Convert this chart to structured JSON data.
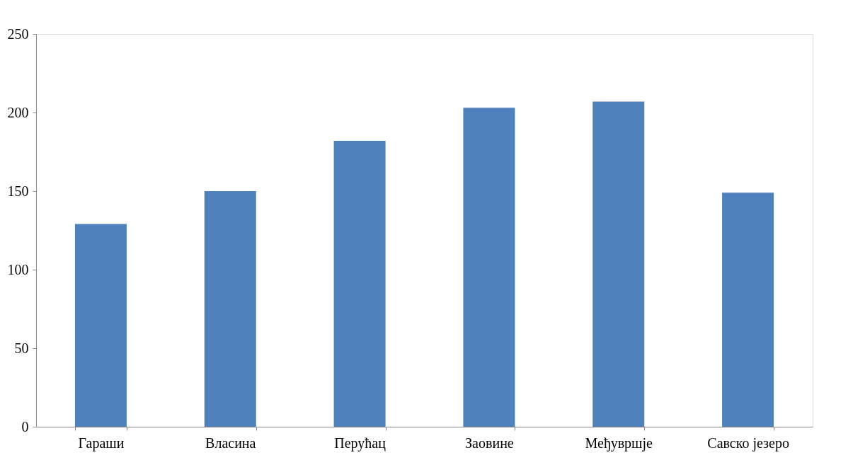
{
  "chart_data": {
    "type": "bar",
    "categories": [
      "Гараши",
      "Власина",
      "Перућац",
      "Заовине",
      "Међувршје",
      "Савско језеро"
    ],
    "values": [
      129,
      150,
      182,
      203,
      207,
      149
    ],
    "color": "#4f81bd",
    "ylim": [
      0,
      250
    ],
    "yticks": [
      0,
      50,
      100,
      150,
      200,
      250
    ],
    "grid": false
  }
}
